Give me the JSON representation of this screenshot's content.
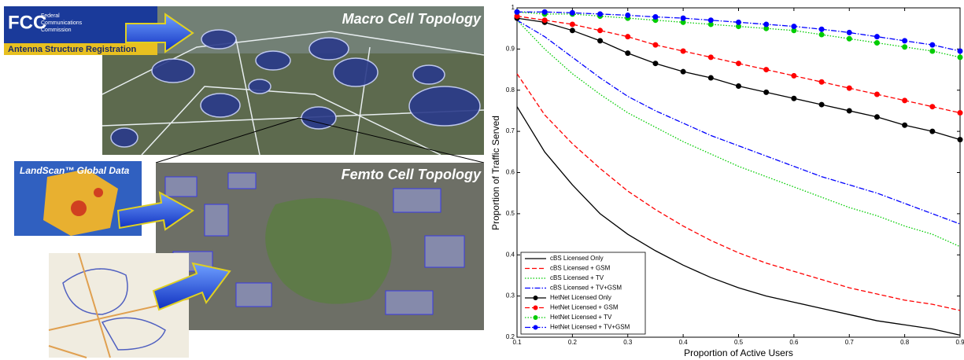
{
  "figure": {
    "macro_label": "Macro Cell Topology",
    "femto_label": "Femto Cell Topology",
    "fcc_logo": "FCC",
    "fcc_lines": [
      "Federal",
      "Communications",
      "Commission"
    ],
    "antenna_label": "Antenna Structure Registration",
    "landscan_label": "LandScan™ Global Data"
  },
  "chart_data": {
    "type": "line",
    "xlabel": "Proportion of Active Users",
    "ylabel": "Proportion of Traffic Served",
    "xlim": [
      0.1,
      0.9
    ],
    "ylim": [
      0.2,
      1
    ],
    "xticks": [
      0.1,
      0.2,
      0.3,
      0.4,
      0.5,
      0.6,
      0.7,
      0.8,
      0.9
    ],
    "yticks": [
      0.2,
      0.3,
      0.4,
      0.5,
      0.6,
      0.7,
      0.8,
      0.9,
      1
    ],
    "legend": "lower left",
    "x": [
      0.1,
      0.15,
      0.2,
      0.25,
      0.3,
      0.35,
      0.4,
      0.45,
      0.5,
      0.55,
      0.6,
      0.65,
      0.7,
      0.75,
      0.8,
      0.85,
      0.9
    ],
    "series": [
      {
        "name": "cBS Licensed Only",
        "color": "#000000",
        "linestyle": "solid",
        "values": [
          0.76,
          0.65,
          0.57,
          0.5,
          0.45,
          0.41,
          0.375,
          0.345,
          0.32,
          0.3,
          0.285,
          0.27,
          0.255,
          0.24,
          0.23,
          0.22,
          0.205
        ]
      },
      {
        "name": "cBS Licensed + GSM",
        "color": "#ff0000",
        "linestyle": "dashed",
        "values": [
          0.84,
          0.74,
          0.67,
          0.61,
          0.555,
          0.51,
          0.47,
          0.435,
          0.405,
          0.38,
          0.36,
          0.34,
          0.32,
          0.305,
          0.29,
          0.28,
          0.265
        ]
      },
      {
        "name": "cBS Licensed + TV",
        "color": "#00cc00",
        "linestyle": "dotted",
        "values": [
          0.97,
          0.9,
          0.84,
          0.79,
          0.745,
          0.71,
          0.675,
          0.645,
          0.615,
          0.59,
          0.565,
          0.54,
          0.515,
          0.495,
          0.47,
          0.45,
          0.42
        ]
      },
      {
        "name": "cBS Licensed + TV+GSM",
        "color": "#0000ff",
        "linestyle": "dashdot",
        "values": [
          0.97,
          0.93,
          0.88,
          0.83,
          0.785,
          0.75,
          0.72,
          0.69,
          0.665,
          0.64,
          0.615,
          0.59,
          0.57,
          0.55,
          0.525,
          0.5,
          0.475
        ]
      },
      {
        "name": "HetNet Licensed Only",
        "color": "#000000",
        "linestyle": "solid",
        "marker": "circle",
        "values": [
          0.975,
          0.965,
          0.945,
          0.92,
          0.89,
          0.865,
          0.845,
          0.83,
          0.81,
          0.795,
          0.78,
          0.765,
          0.75,
          0.735,
          0.715,
          0.7,
          0.68
        ]
      },
      {
        "name": "HetNet Licensed + GSM",
        "color": "#ff0000",
        "linestyle": "dashed",
        "marker": "circle",
        "values": [
          0.98,
          0.97,
          0.96,
          0.945,
          0.93,
          0.91,
          0.895,
          0.88,
          0.865,
          0.85,
          0.835,
          0.82,
          0.805,
          0.79,
          0.775,
          0.76,
          0.745
        ]
      },
      {
        "name": "HetNet Licensed + TV",
        "color": "#00cc00",
        "linestyle": "dotted",
        "marker": "circle",
        "values": [
          0.99,
          0.985,
          0.985,
          0.98,
          0.975,
          0.97,
          0.965,
          0.96,
          0.955,
          0.95,
          0.945,
          0.935,
          0.925,
          0.915,
          0.905,
          0.895,
          0.88
        ]
      },
      {
        "name": "HetNet Licensed + TV+GSM",
        "color": "#0000ff",
        "linestyle": "dashdot",
        "marker": "circle",
        "values": [
          0.99,
          0.99,
          0.988,
          0.985,
          0.982,
          0.978,
          0.975,
          0.97,
          0.965,
          0.96,
          0.955,
          0.948,
          0.94,
          0.93,
          0.92,
          0.91,
          0.895
        ]
      }
    ]
  }
}
